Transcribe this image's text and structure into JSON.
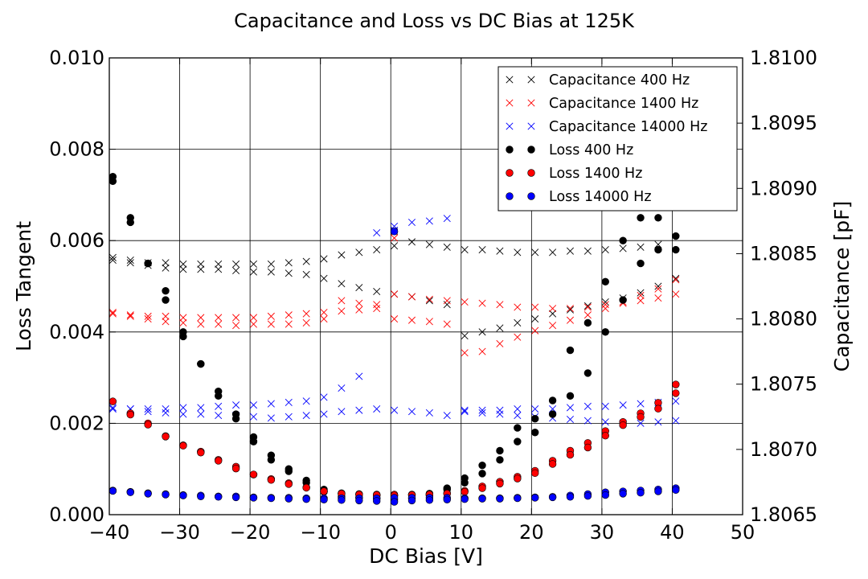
{
  "chart_data": {
    "type": "scatter",
    "title": "Capacitance and Loss vs DC Bias at 125K",
    "xlabel": "DC Bias [V]",
    "ylabel": "Loss Tangent",
    "y2label": "Capacitance [pF]",
    "xlim": [
      -40,
      50
    ],
    "ylim": [
      0,
      0.01
    ],
    "y2lim": [
      1.8065,
      1.81
    ],
    "xticks": [
      "−40",
      "−30",
      "−20",
      "−10",
      "0",
      "10",
      "20",
      "30",
      "40",
      "50"
    ],
    "yticks": [
      "0.000",
      "0.002",
      "0.004",
      "0.006",
      "0.008",
      "0.010"
    ],
    "y2ticks": [
      "1.8065",
      "1.8070",
      "1.8075",
      "1.8080",
      "1.8085",
      "1.8090",
      "1.8095",
      "1.8100"
    ],
    "grid": true,
    "legend_position": "top-right",
    "series": [
      {
        "name": "Capacitance 400 Hz",
        "color": "#000000",
        "marker": "x",
        "axis": "right",
        "x": [
          -39.5,
          -37,
          -34.5,
          -32,
          -29.5,
          -27,
          -24.5,
          -22,
          -19.5,
          -17,
          -14.5,
          -12,
          -9.5,
          -7,
          -4.5,
          -2,
          0.5,
          3,
          5.5,
          8,
          10.5,
          13,
          15.5,
          18,
          20.5,
          23,
          25.5,
          28,
          30.5,
          33,
          35.5,
          38,
          40.5,
          -39.5,
          -37,
          -34.5,
          -32,
          -29.5,
          -27,
          -24.5,
          -22,
          -19.5,
          -17,
          -14.5,
          -12,
          -9.5,
          -7,
          -4.5,
          -2,
          0.5,
          0.5,
          3,
          5.5,
          8,
          10.5,
          13,
          15.5,
          18,
          20.5,
          23,
          25.5,
          28,
          30.5,
          33,
          35.5,
          38
        ],
        "y": [
          1.80845,
          1.80843,
          1.80841,
          1.80839,
          1.80838,
          1.80838,
          1.80838,
          1.80837,
          1.80836,
          1.80836,
          1.80835,
          1.80834,
          1.80831,
          1.80827,
          1.80824,
          1.80821,
          1.80819,
          1.80817,
          1.80814,
          1.80811,
          1.80787,
          1.8079,
          1.80793,
          1.80797,
          1.808,
          1.80804,
          1.80807,
          1.8081,
          1.80813,
          1.80816,
          1.8082,
          1.80825,
          1.80831,
          1.80847,
          1.80845,
          1.80843,
          1.80843,
          1.80842,
          1.80842,
          1.80842,
          1.80842,
          1.80842,
          1.80842,
          1.80843,
          1.80844,
          1.80846,
          1.80849,
          1.80851,
          1.80853,
          1.80867,
          1.80856,
          1.80859,
          1.80857,
          1.80855,
          1.80853,
          1.80853,
          1.80852,
          1.80851,
          1.80851,
          1.80851,
          1.80852,
          1.80852,
          1.80853,
          1.80854,
          1.80855,
          1.80857
        ]
      },
      {
        "name": "Capacitance 1400 Hz",
        "color": "#ff0000",
        "marker": "x",
        "axis": "right",
        "x": [
          -39.5,
          -37,
          -34.5,
          -32,
          -29.5,
          -27,
          -24.5,
          -22,
          -19.5,
          -17,
          -14.5,
          -12,
          -9.5,
          -7,
          -4.5,
          -2,
          0.5,
          3,
          5.5,
          8,
          10.5,
          13,
          15.5,
          18,
          20.5,
          23,
          25.5,
          28,
          30.5,
          33,
          35.5,
          38,
          40.5,
          -39.5,
          -37,
          -34.5,
          -32,
          -29.5,
          -27,
          -24.5,
          -22,
          -19.5,
          -17,
          -14.5,
          -12,
          -9.5,
          -7,
          -4.5,
          -2,
          0.5,
          0.5,
          3,
          5.5,
          8,
          10.5,
          13,
          15.5,
          18,
          20.5,
          23,
          25.5,
          28,
          30.5,
          33,
          35.5,
          38,
          40.5
        ],
        "y": [
          1.80805,
          1.80802,
          1.808,
          1.80798,
          1.80797,
          1.80796,
          1.80796,
          1.80795,
          1.80796,
          1.80796,
          1.80796,
          1.80797,
          1.808,
          1.80814,
          1.80812,
          1.80811,
          1.808,
          1.80799,
          1.80798,
          1.80796,
          1.80774,
          1.80775,
          1.80781,
          1.80786,
          1.80791,
          1.80795,
          1.80799,
          1.80803,
          1.80808,
          1.80813,
          1.80818,
          1.80823,
          1.8083,
          1.80804,
          1.80803,
          1.80802,
          1.80802,
          1.80801,
          1.80801,
          1.80801,
          1.80801,
          1.80801,
          1.80802,
          1.80803,
          1.80804,
          1.80805,
          1.80806,
          1.80807,
          1.80808,
          1.80862,
          1.80819,
          1.80817,
          1.80815,
          1.80814,
          1.80813,
          1.80812,
          1.80811,
          1.80809,
          1.80809,
          1.80808,
          1.80808,
          1.80809,
          1.80811,
          1.80812,
          1.80814,
          1.80816,
          1.80819
        ]
      },
      {
        "name": "Capacitance 14000 Hz",
        "color": "#0000ff",
        "marker": "x",
        "axis": "right",
        "x": [
          -39.5,
          -37,
          -34.5,
          -32,
          -29.5,
          -27,
          -24.5,
          -22,
          -19.5,
          -17,
          -14.5,
          -12,
          -9.5,
          -7,
          -4.5,
          -2,
          0.5,
          3,
          5.5,
          8,
          10.5,
          13,
          15.5,
          18,
          20.5,
          23,
          25.5,
          28,
          30.5,
          33,
          35.5,
          38,
          40.5,
          -39.5,
          -37,
          -34.5,
          -32,
          -29.5,
          -27,
          -24.5,
          -22,
          -19.5,
          -17,
          -14.5,
          -12,
          -9.5,
          -7,
          -4.5,
          -2,
          0.5,
          0.5,
          3,
          5.5,
          8,
          10.5,
          13,
          15.5,
          18,
          20.5,
          23,
          25.5,
          28,
          30.5,
          33,
          35.5,
          38,
          40.5
        ],
        "y": [
          1.80732,
          1.80731,
          1.80729,
          1.80728,
          1.80727,
          1.80727,
          1.80726,
          1.80726,
          1.80725,
          1.80724,
          1.80725,
          1.80726,
          1.80727,
          1.80729,
          1.8073,
          1.80731,
          1.8073,
          1.80729,
          1.80728,
          1.80726,
          1.80729,
          1.80728,
          1.80727,
          1.80726,
          1.80725,
          1.80724,
          1.80723,
          1.80722,
          1.80721,
          1.8072,
          1.8072,
          1.80721,
          1.80722,
          1.80731,
          1.80731,
          1.80731,
          1.80731,
          1.80732,
          1.80732,
          1.80733,
          1.80734,
          1.80734,
          1.80735,
          1.80736,
          1.80737,
          1.8074,
          1.80747,
          1.80756,
          1.80866,
          1.80871,
          1.80868,
          1.80874,
          1.80875,
          1.80877,
          1.8073,
          1.8073,
          1.8073,
          1.80731,
          1.80731,
          1.80731,
          1.80732,
          1.80733,
          1.80733,
          1.80734,
          1.80735,
          1.80736,
          1.80737
        ]
      },
      {
        "name": "Loss 400 Hz",
        "color": "#000000",
        "marker": "o",
        "axis": "left",
        "x": [
          -39.5,
          -37,
          -34.5,
          -32,
          -29.5,
          -27,
          -24.5,
          -22,
          -19.5,
          -17,
          -14.5,
          -12,
          -9.5,
          -7,
          -4.5,
          -2,
          0.5,
          3,
          5.5,
          8,
          10.5,
          13,
          15.5,
          18,
          20.5,
          23,
          25.5,
          28,
          30.5,
          33,
          35.5,
          38,
          40.5,
          -39.5,
          -37,
          -34.5,
          -32,
          -29.5,
          -27,
          -24.5,
          -22,
          -19.5,
          -17,
          -14.5,
          -12,
          -9.5,
          -7,
          -4.5,
          -2,
          0.5,
          3,
          5.5,
          8,
          10.5,
          13,
          15.5,
          18,
          20.5,
          23,
          25.5,
          28,
          30.5,
          33,
          35.5,
          38,
          40.5
        ],
        "y": [
          0.0074,
          0.0065,
          0.0055,
          0.0049,
          0.004,
          0.0033,
          0.0027,
          0.0022,
          0.0017,
          0.0013,
          0.001,
          0.00075,
          0.00055,
          0.00047,
          0.00045,
          0.00042,
          0.00041,
          0.00043,
          0.00046,
          0.00058,
          0.0008,
          0.00108,
          0.0014,
          0.0019,
          0.0021,
          0.0025,
          0.0036,
          0.0042,
          0.0051,
          0.006,
          0.0065,
          0.0065,
          0.0061,
          0.0073,
          0.0064,
          0.0055,
          0.0047,
          0.0039,
          0.0033,
          0.0026,
          0.0021,
          0.0016,
          0.0012,
          0.00095,
          0.0007,
          0.0005,
          0.0004,
          0.00038,
          0.00035,
          0.00033,
          0.00035,
          0.00042,
          0.00055,
          0.0007,
          0.0009,
          0.0012,
          0.0016,
          0.0018,
          0.0022,
          0.0026,
          0.0031,
          0.004,
          0.0047,
          0.0055,
          0.0058,
          0.0058
        ]
      },
      {
        "name": "Loss 1400 Hz",
        "color": "#ff0000",
        "marker": "o",
        "axis": "left",
        "x": [
          -39.5,
          -37,
          -34.5,
          -32,
          -29.5,
          -27,
          -24.5,
          -22,
          -19.5,
          -17,
          -14.5,
          -12,
          -9.5,
          -7,
          -4.5,
          -2,
          0.5,
          3,
          5.5,
          8,
          10.5,
          13,
          15.5,
          18,
          20.5,
          23,
          25.5,
          28,
          30.5,
          33,
          35.5,
          38,
          40.5,
          -37,
          -34.5,
          -32,
          -29.5,
          -27,
          -24.5,
          -22,
          -19.5,
          -17,
          -14.5,
          -12,
          -9.5,
          -7,
          -4.5,
          -2,
          0.5,
          3,
          5.5,
          8,
          10.5,
          13,
          15.5,
          18,
          20.5,
          23,
          25.5,
          28,
          30.5,
          33,
          35.5,
          38,
          40.5
        ],
        "y": [
          0.00248,
          0.00222,
          0.002,
          0.00172,
          0.00152,
          0.00138,
          0.0012,
          0.00105,
          0.00088,
          0.00078,
          0.00069,
          0.0006,
          0.00052,
          0.00046,
          0.00045,
          0.00044,
          0.00044,
          0.00044,
          0.00045,
          0.00047,
          0.00052,
          0.00062,
          0.00072,
          0.00083,
          0.00096,
          0.00118,
          0.0014,
          0.00157,
          0.00183,
          0.00203,
          0.00222,
          0.00245,
          0.00285,
          0.00219,
          0.00197,
          0.00171,
          0.00151,
          0.00136,
          0.00118,
          0.00101,
          0.00088,
          0.00076,
          0.00067,
          0.00059,
          0.00051,
          0.00046,
          0.00044,
          0.00043,
          0.00042,
          0.00043,
          0.00044,
          0.00046,
          0.0005,
          0.00058,
          0.00068,
          0.00079,
          0.00091,
          0.00111,
          0.00131,
          0.00147,
          0.00173,
          0.00196,
          0.00214,
          0.00232,
          0.00266
        ]
      },
      {
        "name": "Loss 14000 Hz",
        "color": "#0000ff",
        "marker": "o",
        "axis": "left",
        "x": [
          -39.5,
          -37,
          -34.5,
          -32,
          -29.5,
          -27,
          -24.5,
          -22,
          -19.5,
          -17,
          -14.5,
          -12,
          -9.5,
          -7,
          -4.5,
          -2,
          0.5,
          3,
          5.5,
          8,
          10.5,
          13,
          15.5,
          18,
          20.5,
          23,
          25.5,
          28,
          30.5,
          33,
          35.5,
          38,
          40.5,
          -39.5,
          -37,
          -34.5,
          -32,
          -29.5,
          -27,
          -24.5,
          -22,
          -19.5,
          -17,
          -14.5,
          -12,
          -9.5,
          -7,
          -4.5,
          -2,
          0.5,
          0.5,
          3,
          5.5,
          8,
          10.5,
          13,
          15.5,
          18,
          20.5,
          23,
          25.5,
          28,
          30.5,
          33,
          35.5,
          38,
          40.5
        ],
        "y": [
          0.00053,
          0.0005,
          0.00047,
          0.00045,
          0.00043,
          0.00042,
          0.0004,
          0.0004,
          0.00038,
          0.00037,
          0.00037,
          0.00036,
          0.00036,
          0.00036,
          0.00036,
          0.00036,
          0.00037,
          0.00037,
          0.00037,
          0.00037,
          0.00036,
          0.00036,
          0.00036,
          0.00037,
          0.00038,
          0.00039,
          0.00042,
          0.00045,
          0.00049,
          0.00051,
          0.00053,
          0.00055,
          0.00058,
          0.00052,
          0.00049,
          0.00046,
          0.00044,
          0.00042,
          0.0004,
          0.00039,
          0.00038,
          0.00037,
          0.00036,
          0.00035,
          0.00034,
          0.00033,
          0.00032,
          0.00031,
          0.0003,
          0.0062,
          0.00028,
          0.00031,
          0.00032,
          0.00033,
          0.00034,
          0.00035,
          0.00035,
          0.00036,
          0.00037,
          0.00038,
          0.00039,
          0.00041,
          0.00043,
          0.00046,
          0.00048,
          0.00051,
          0.00054
        ]
      }
    ]
  }
}
